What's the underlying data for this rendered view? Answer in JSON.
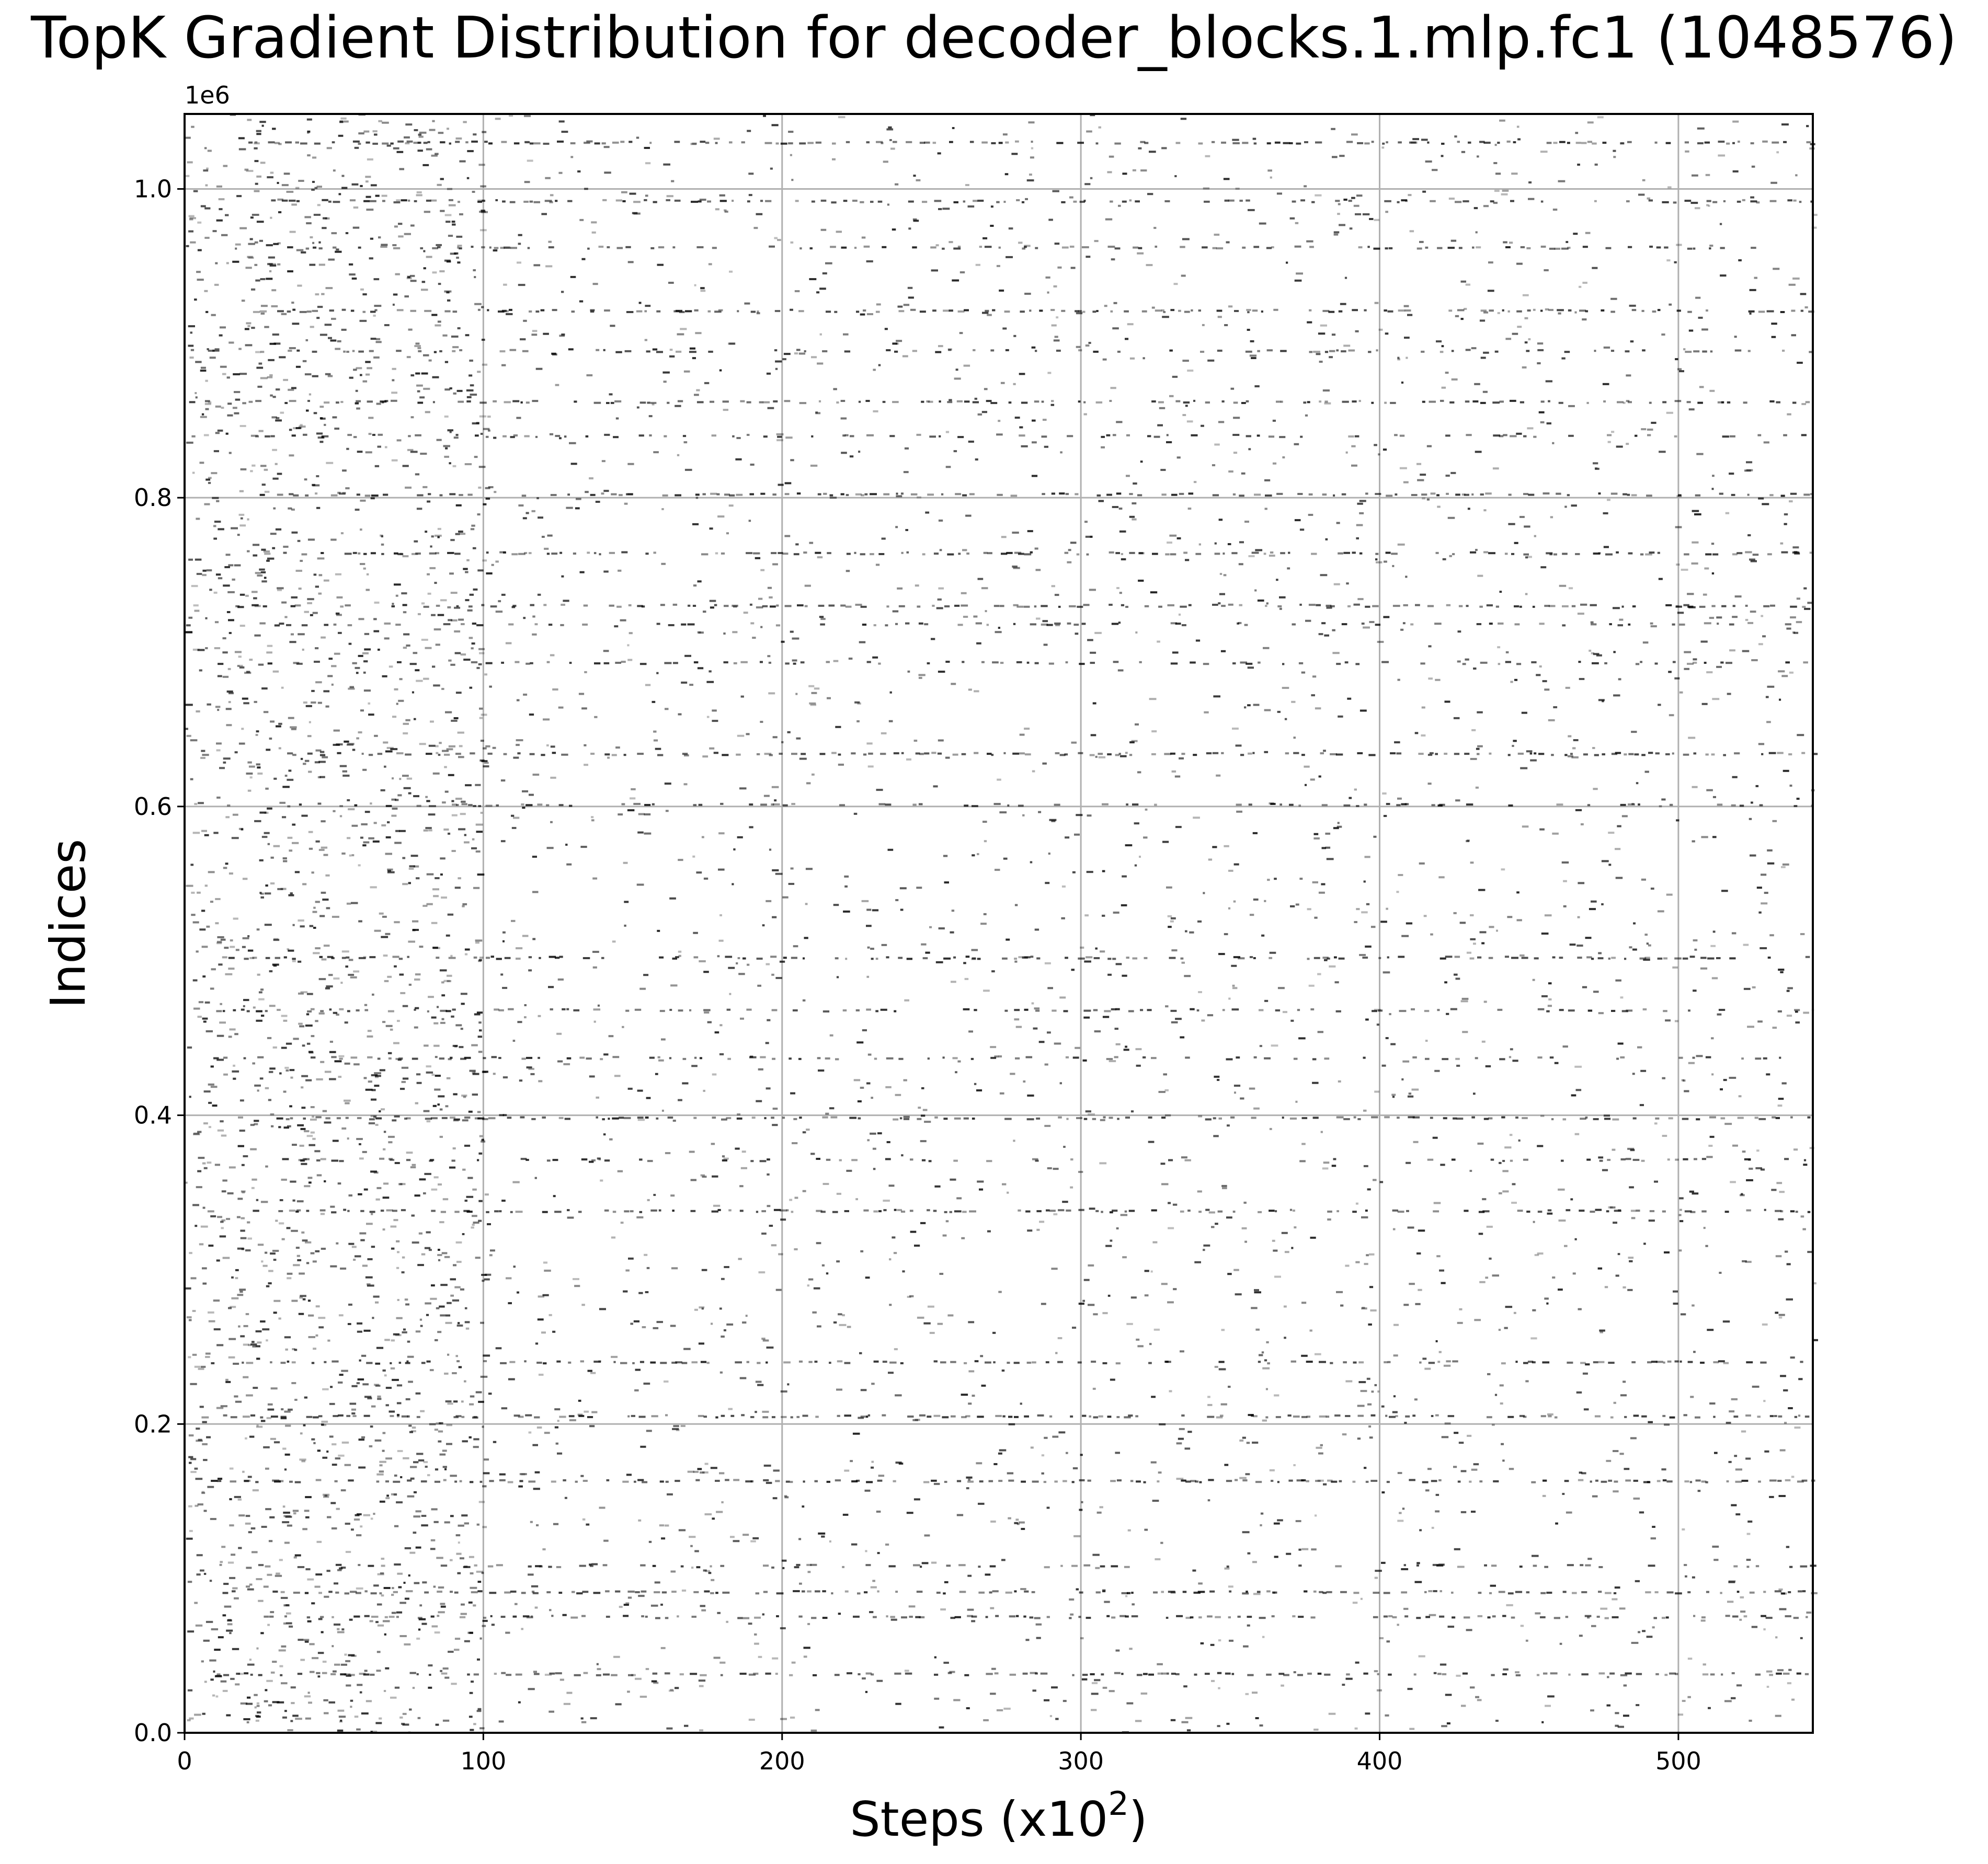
{
  "chart_data": {
    "type": "scatter",
    "title": "TopK Gradient Distribution for decoder_blocks.1.mlp.fc1 (1048576)",
    "xlabel_main": "Steps (x10",
    "xlabel_sup": "2",
    "xlabel_close": ")",
    "ylabel": "Indices",
    "y_offset_label": "1e6",
    "xlim": [
      0,
      545
    ],
    "ylim": [
      0,
      1048576
    ],
    "grid": true,
    "x_ticks": [
      0,
      100,
      200,
      300,
      400,
      500
    ],
    "x_tick_labels": [
      "0",
      "100",
      "200",
      "300",
      "400",
      "500"
    ],
    "y_ticks": [
      0,
      200000,
      400000,
      600000,
      800000,
      1000000
    ],
    "y_tick_labels": [
      "0.0",
      "0.2",
      "0.4",
      "0.6",
      "0.8",
      "1.0"
    ],
    "marker_color": "#000000",
    "persistent_index_bands": [
      1030000,
      992000,
      962000,
      921000,
      895000,
      862000,
      840000,
      802000,
      764000,
      730000,
      718000,
      693000,
      634000,
      601000,
      502000,
      468000,
      437000,
      398000,
      371000,
      338000,
      240000,
      205000,
      163000,
      108000,
      91000,
      75000,
      38000
    ],
    "series_note": "Each point marks a top-K gradient index (y) selected at a training step (x); points form dashed horizontal bands at frequently selected indices."
  }
}
